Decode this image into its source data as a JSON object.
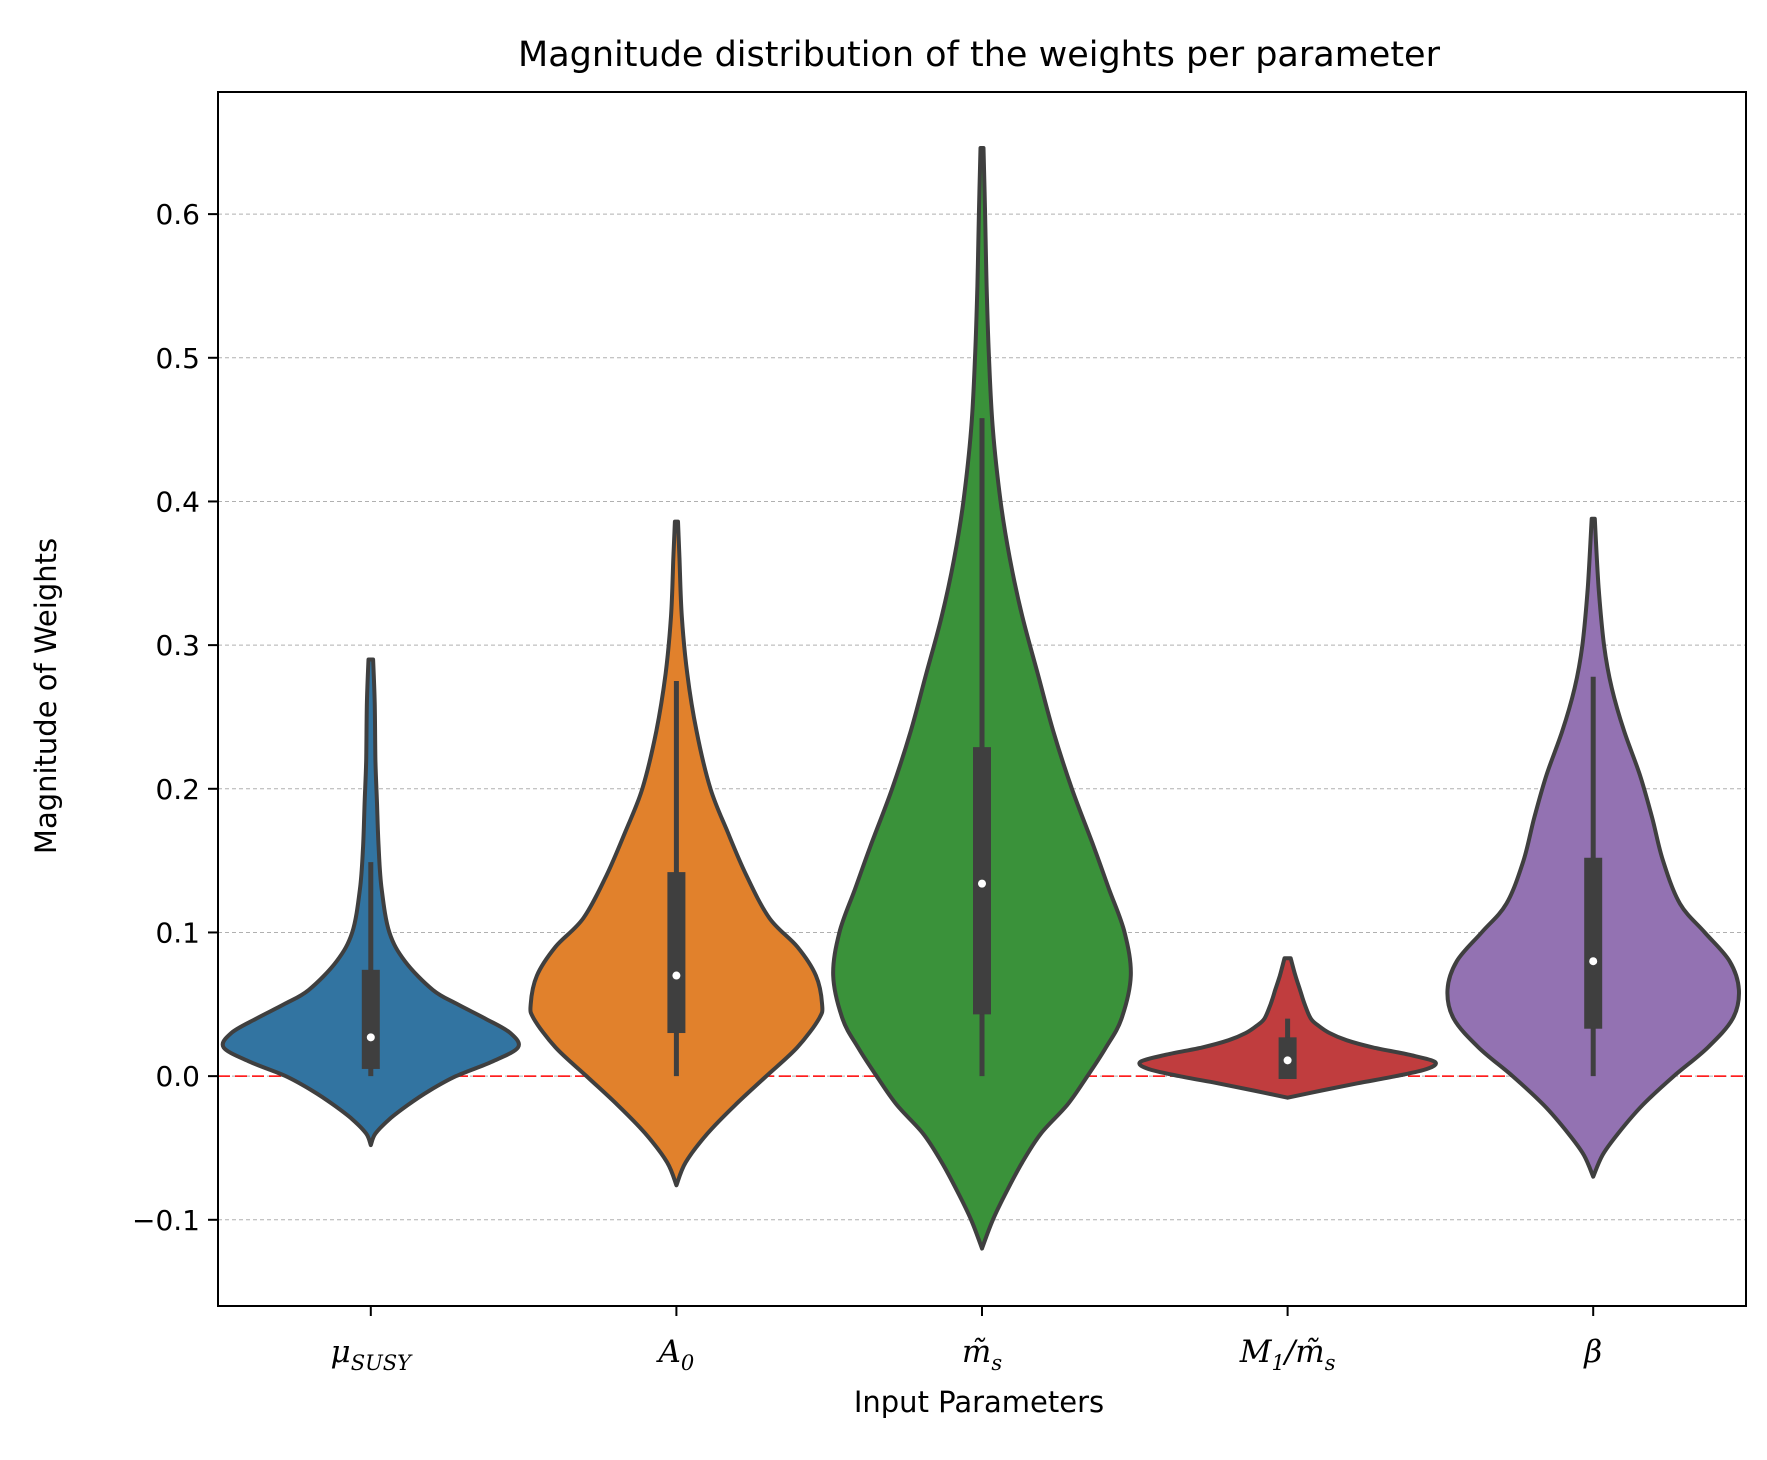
{
  "chart_data": {
    "type": "violin",
    "title": "Magnitude distribution of the weights per parameter",
    "xlabel": "Input Parameters",
    "ylabel": "Magnitude of Weights",
    "ylim": [
      -0.16,
      0.685
    ],
    "yticks": [
      -0.1,
      0.0,
      0.1,
      0.2,
      0.3,
      0.4,
      0.5,
      0.6
    ],
    "ytick_labels": [
      "−0.1",
      "0.0",
      "0.1",
      "0.2",
      "0.3",
      "0.4",
      "0.5",
      "0.6"
    ],
    "grid": "horizontal dashed",
    "reference_line": {
      "y": 0.0,
      "color": "#ff0000",
      "style": "dashed"
    },
    "series": [
      {
        "label_main": "μ",
        "label_sub": "SUSY",
        "color": "#3274a1",
        "median": 0.027,
        "q1": 0.005,
        "q3": 0.074,
        "whisker_low": 0.0,
        "whisker_high": 0.149,
        "min": -0.048,
        "max": 0.292,
        "profile": [
          [
            -0.048,
            0.0
          ],
          [
            -0.04,
            0.03
          ],
          [
            -0.03,
            0.12
          ],
          [
            -0.02,
            0.24
          ],
          [
            -0.01,
            0.38
          ],
          [
            0.0,
            0.55
          ],
          [
            0.01,
            0.78
          ],
          [
            0.02,
            0.95
          ],
          [
            0.03,
            0.9
          ],
          [
            0.04,
            0.74
          ],
          [
            0.05,
            0.56
          ],
          [
            0.06,
            0.4
          ],
          [
            0.08,
            0.22
          ],
          [
            0.1,
            0.12
          ],
          [
            0.13,
            0.07
          ],
          [
            0.16,
            0.05
          ],
          [
            0.19,
            0.04
          ],
          [
            0.22,
            0.03
          ],
          [
            0.26,
            0.025
          ],
          [
            0.29,
            0.015
          ]
        ]
      },
      {
        "label_main": "A",
        "label_sub": "0",
        "color": "#e1812c",
        "median": 0.07,
        "q1": 0.03,
        "q3": 0.142,
        "whisker_low": 0.0,
        "whisker_high": 0.275,
        "min": -0.076,
        "max": 0.386,
        "profile": [
          [
            -0.076,
            0.0
          ],
          [
            -0.06,
            0.06
          ],
          [
            -0.04,
            0.2
          ],
          [
            -0.02,
            0.38
          ],
          [
            0.0,
            0.58
          ],
          [
            0.02,
            0.78
          ],
          [
            0.04,
            0.92
          ],
          [
            0.05,
            0.94
          ],
          [
            0.07,
            0.9
          ],
          [
            0.09,
            0.78
          ],
          [
            0.11,
            0.6
          ],
          [
            0.14,
            0.45
          ],
          [
            0.17,
            0.33
          ],
          [
            0.2,
            0.22
          ],
          [
            0.24,
            0.13
          ],
          [
            0.28,
            0.07
          ],
          [
            0.32,
            0.035
          ],
          [
            0.36,
            0.02
          ],
          [
            0.386,
            0.01
          ]
        ]
      },
      {
        "label_main": "m̃",
        "label_sub": "s",
        "color": "#3a923a",
        "median": 0.134,
        "q1": 0.043,
        "q3": 0.229,
        "whisker_low": 0.0,
        "whisker_high": 0.458,
        "min": -0.12,
        "max": 0.646,
        "profile": [
          [
            -0.12,
            0.0
          ],
          [
            -0.1,
            0.07
          ],
          [
            -0.08,
            0.16
          ],
          [
            -0.06,
            0.26
          ],
          [
            -0.04,
            0.38
          ],
          [
            -0.02,
            0.55
          ],
          [
            0.0,
            0.68
          ],
          [
            0.02,
            0.8
          ],
          [
            0.04,
            0.9
          ],
          [
            0.07,
            0.96
          ],
          [
            0.1,
            0.92
          ],
          [
            0.13,
            0.82
          ],
          [
            0.16,
            0.72
          ],
          [
            0.2,
            0.58
          ],
          [
            0.24,
            0.46
          ],
          [
            0.28,
            0.36
          ],
          [
            0.32,
            0.26
          ],
          [
            0.36,
            0.18
          ],
          [
            0.4,
            0.12
          ],
          [
            0.45,
            0.07
          ],
          [
            0.5,
            0.045
          ],
          [
            0.55,
            0.03
          ],
          [
            0.6,
            0.02
          ],
          [
            0.646,
            0.01
          ]
        ]
      },
      {
        "label_main": "M",
        "label_sub": "1",
        "label_tail": "/m̃",
        "label_tail_sub": "s",
        "color": "#c03d3e",
        "median": 0.011,
        "q1": -0.002,
        "q3": 0.027,
        "whisker_low": -0.002,
        "whisker_high": 0.04,
        "min": -0.015,
        "max": 0.082,
        "profile": [
          [
            -0.015,
            0.0
          ],
          [
            -0.01,
            0.22
          ],
          [
            -0.005,
            0.45
          ],
          [
            0.0,
            0.7
          ],
          [
            0.005,
            0.9
          ],
          [
            0.01,
            0.95
          ],
          [
            0.015,
            0.78
          ],
          [
            0.02,
            0.55
          ],
          [
            0.025,
            0.38
          ],
          [
            0.03,
            0.27
          ],
          [
            0.035,
            0.2
          ],
          [
            0.04,
            0.15
          ],
          [
            0.05,
            0.11
          ],
          [
            0.06,
            0.08
          ],
          [
            0.07,
            0.05
          ],
          [
            0.082,
            0.02
          ]
        ]
      },
      {
        "label_main": "β",
        "label_sub": "",
        "color": "#9372b2",
        "median": 0.08,
        "q1": 0.033,
        "q3": 0.152,
        "whisker_low": 0.0,
        "whisker_high": 0.278,
        "min": -0.07,
        "max": 0.388,
        "profile": [
          [
            -0.07,
            0.0
          ],
          [
            -0.055,
            0.06
          ],
          [
            -0.04,
            0.16
          ],
          [
            -0.02,
            0.32
          ],
          [
            0.0,
            0.52
          ],
          [
            0.02,
            0.74
          ],
          [
            0.04,
            0.9
          ],
          [
            0.06,
            0.94
          ],
          [
            0.08,
            0.88
          ],
          [
            0.1,
            0.72
          ],
          [
            0.12,
            0.56
          ],
          [
            0.15,
            0.45
          ],
          [
            0.18,
            0.38
          ],
          [
            0.21,
            0.3
          ],
          [
            0.24,
            0.2
          ],
          [
            0.27,
            0.12
          ],
          [
            0.3,
            0.07
          ],
          [
            0.34,
            0.035
          ],
          [
            0.388,
            0.01
          ]
        ]
      }
    ]
  }
}
